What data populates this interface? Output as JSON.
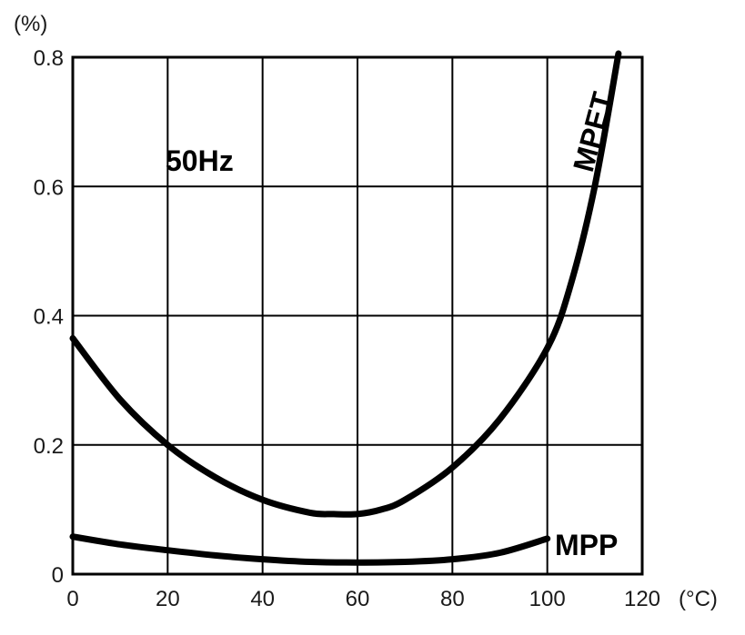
{
  "chart_data": {
    "type": "line",
    "x_unit": "(°C)",
    "y_unit": "(%)",
    "xlim": [
      0,
      120
    ],
    "ylim": [
      0,
      0.8
    ],
    "x_ticks": [
      "0",
      "20",
      "40",
      "60",
      "80",
      "100",
      "120"
    ],
    "y_ticks": [
      "0",
      "0.2",
      "0.4",
      "0.6",
      "0.8"
    ],
    "grid": true,
    "annotations": [
      "50Hz"
    ],
    "series": [
      {
        "name": "MPET",
        "x": [
          0,
          10,
          20,
          30,
          40,
          50,
          55,
          60,
          65,
          70,
          80,
          90,
          100,
          105,
          110,
          115
        ],
        "y": [
          0.365,
          0.27,
          0.2,
          0.15,
          0.115,
          0.095,
          0.093,
          0.093,
          0.1,
          0.115,
          0.165,
          0.24,
          0.35,
          0.45,
          0.6,
          0.81
        ]
      },
      {
        "name": "MPP",
        "x": [
          0,
          10,
          20,
          30,
          40,
          50,
          60,
          70,
          80,
          90,
          100
        ],
        "y": [
          0.058,
          0.046,
          0.037,
          0.029,
          0.023,
          0.019,
          0.018,
          0.019,
          0.023,
          0.033,
          0.055
        ]
      }
    ]
  }
}
